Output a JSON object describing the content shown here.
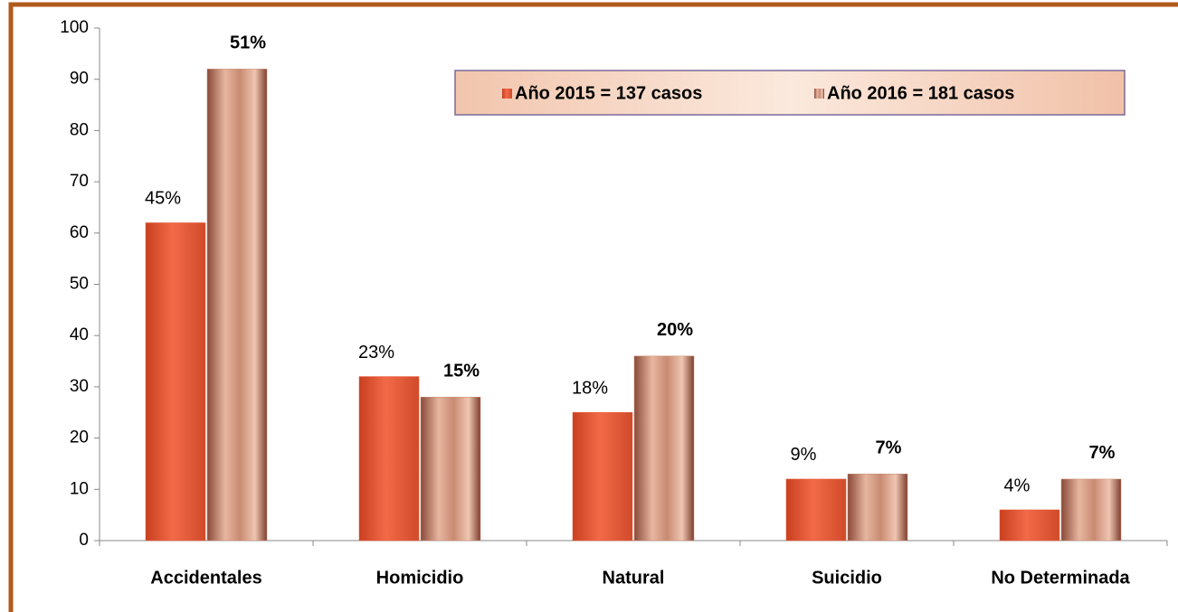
{
  "chart_data": {
    "type": "bar",
    "categories": [
      "Accidentales",
      "Homicidio",
      "Natural",
      "Suicidio",
      "No Determinada"
    ],
    "series": [
      {
        "name": "Año 2015 = 137 casos",
        "color": "#e8583a",
        "values": [
          62,
          32,
          25,
          12,
          6
        ],
        "value_labels": [
          "45%",
          "23%",
          "18%",
          "9%",
          "4%"
        ]
      },
      {
        "name": "Año 2016 = 181  casos",
        "color": "#c98a72",
        "values": [
          92,
          28,
          36,
          13,
          12
        ],
        "value_labels": [
          "51%",
          "15%",
          "20%",
          "7%",
          "7%"
        ]
      }
    ],
    "ylim": [
      0,
      100
    ],
    "yticks": [
      0,
      10,
      20,
      30,
      40,
      50,
      60,
      70,
      80,
      90,
      100
    ],
    "legend": "top-right"
  }
}
